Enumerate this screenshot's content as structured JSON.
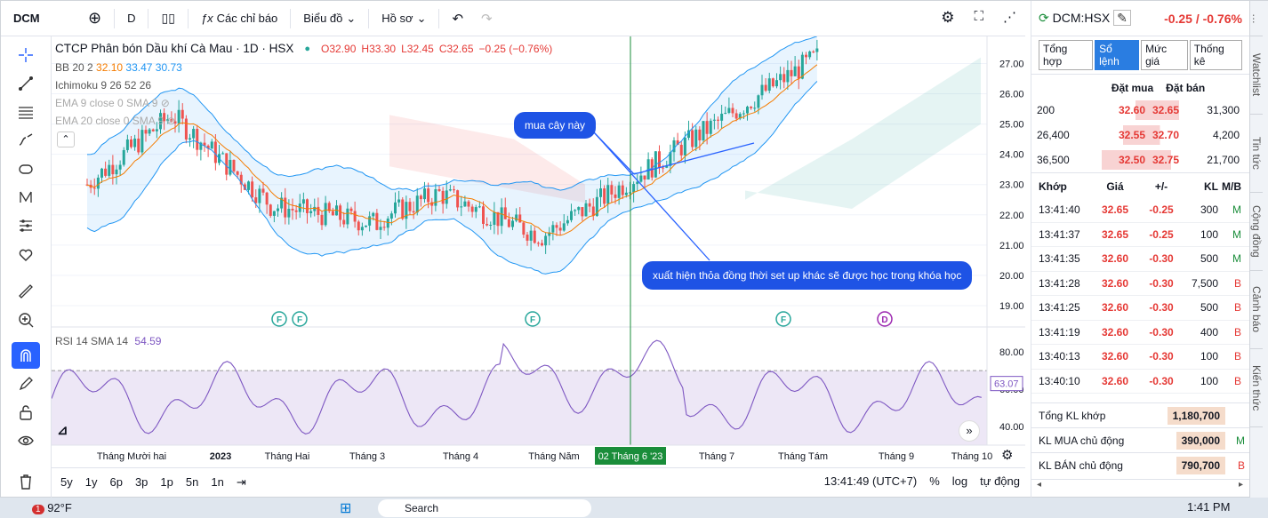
{
  "toolbar": {
    "symbol": "DCM",
    "interval": "D",
    "indicators": "Các chỉ báo",
    "chart_menu": "Biểu đồ",
    "profile_menu": "Hồ sơ"
  },
  "legend": {
    "title": "CTCP Phân bón Dầu khí Cà Mau · 1D · HSX",
    "o": "O32.90",
    "h": "H33.30",
    "l": "L32.45",
    "c": "C32.65",
    "chg": "−0.25 (−0.76%)",
    "bb_label": "BB 20 2",
    "bb_mid": "32.10",
    "bb_up": "33.47",
    "bb_low": "30.73",
    "ichimoku": "Ichimoku 9 26 52 26",
    "ema9": "EMA 9 close 0 SMA 9",
    "ema20": "EMA 20 close 0 SMA 9"
  },
  "annotations": {
    "buy": "mua cây này",
    "note": "xuất hiện thỏa đồng thời set up khác sẽ được học trong khóa học"
  },
  "rsi": {
    "label": "RSI 14 SMA 14",
    "value": "54.59",
    "last": "63.07"
  },
  "price_axis": [
    "27.00",
    "26.00",
    "25.00",
    "24.00",
    "23.00",
    "22.00",
    "21.00",
    "20.00",
    "19.00"
  ],
  "rsi_axis": [
    "80.00",
    "60.00",
    "40.00"
  ],
  "time_axis": [
    "Tháng Mười hai",
    "2023",
    "Tháng Hai",
    "Tháng 3",
    "Tháng 4",
    "Tháng Năm",
    "02 Tháng 6 '23",
    "Tháng 7",
    "Tháng Tám",
    "Tháng 9",
    "Tháng 10"
  ],
  "markers": [
    "F",
    "F",
    "F",
    "F",
    "D"
  ],
  "ranges": [
    "5y",
    "1y",
    "6p",
    "3p",
    "1p",
    "5n",
    "1n"
  ],
  "bottom_right": {
    "clock": "13:41:49 (UTC+7)",
    "pct": "%",
    "log": "log",
    "auto": "tự động"
  },
  "panel": {
    "symbol": "DCM:HSX",
    "change": "-0.25 / -0.76%",
    "tabs": [
      "Tổng hợp",
      "Sổ lệnh",
      "Mức giá",
      "Thống kê"
    ],
    "ob_headers": [
      "Đặt mua",
      "Đặt bán"
    ],
    "orderbook": [
      {
        "bv": "200",
        "b": "32.60",
        "a": "32.65",
        "av": "31,300"
      },
      {
        "bv": "26,400",
        "b": "32.55",
        "a": "32.70",
        "av": "4,200"
      },
      {
        "bv": "36,500",
        "b": "32.50",
        "a": "32.75",
        "av": "21,700"
      }
    ],
    "trade_headers": [
      "Khớp",
      "Giá",
      "+/-",
      "KL",
      "M/B"
    ],
    "trades": [
      [
        "13:41:40",
        "32.65",
        "-0.25",
        "300",
        "M"
      ],
      [
        "13:41:37",
        "32.65",
        "-0.25",
        "100",
        "M"
      ],
      [
        "13:41:35",
        "32.60",
        "-0.30",
        "500",
        "M"
      ],
      [
        "13:41:28",
        "32.60",
        "-0.30",
        "7,500",
        "B"
      ],
      [
        "13:41:25",
        "32.60",
        "-0.30",
        "500",
        "B"
      ],
      [
        "13:41:19",
        "32.60",
        "-0.30",
        "400",
        "B"
      ],
      [
        "13:40:13",
        "32.60",
        "-0.30",
        "100",
        "B"
      ],
      [
        "13:40:10",
        "32.60",
        "-0.30",
        "100",
        "B"
      ]
    ],
    "sum": [
      {
        "label": "Tổng KL khớp",
        "val": "1,180,700",
        "mb": ""
      },
      {
        "label": "KL MUA chủ động",
        "val": "390,000",
        "mb": "M"
      },
      {
        "label": "KL BÁN chủ động",
        "val": "790,700",
        "mb": "B"
      }
    ]
  },
  "side_tabs": [
    "Watchlist",
    "Tin tức",
    "Cộng đồng",
    "Cảnh báo",
    "Kiến thức"
  ],
  "taskbar": {
    "temp": "92°F",
    "time": "1:41 PM",
    "search": "Search"
  },
  "colors": {
    "up": "#26a69a",
    "down": "#ef5350",
    "accent": "#2962ff",
    "bb": "#2196f3",
    "ema": "#f57c00",
    "rsi": "#7e57c2"
  }
}
